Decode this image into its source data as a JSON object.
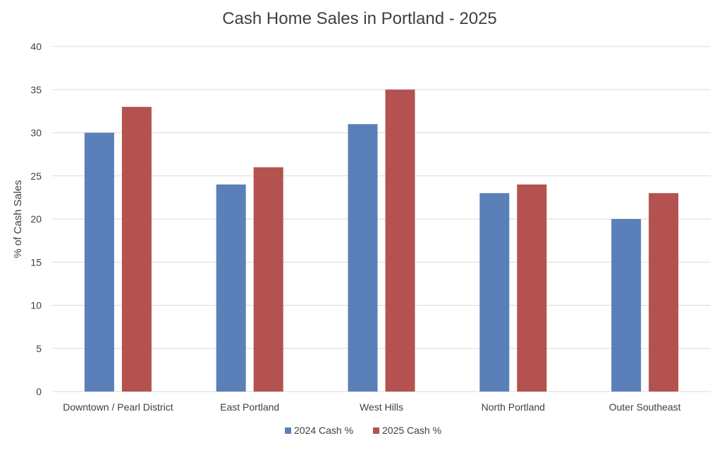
{
  "chart_data": {
    "type": "bar",
    "title": "Cash Home Sales in Portland - 2025",
    "xlabel": "",
    "ylabel": "% of Cash Sales",
    "ylim": [
      0,
      40
    ],
    "ytick_step": 5,
    "grid": true,
    "legend_position": "bottom",
    "categories": [
      "Downtown / Pearl District",
      "East Portland",
      "West Hills",
      "North Portland",
      "Outer Southeast"
    ],
    "series": [
      {
        "name": "2024 Cash %",
        "color": "#5b7fb8",
        "values": [
          30,
          24,
          31,
          23,
          20
        ]
      },
      {
        "name": "2025 Cash %",
        "color": "#b3524e",
        "values": [
          33,
          26,
          35,
          24,
          23
        ]
      }
    ]
  }
}
